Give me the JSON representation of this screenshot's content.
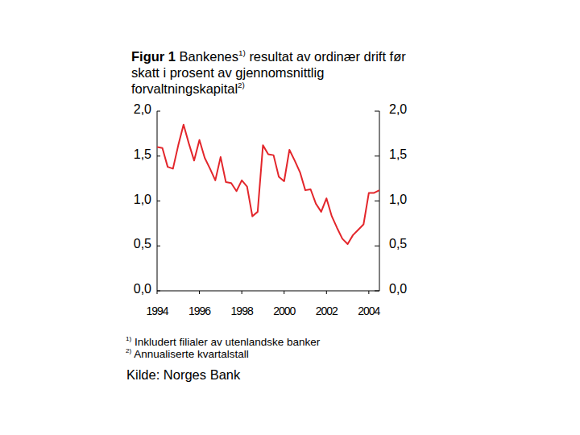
{
  "chart_data": {
    "type": "line",
    "title": "Figur 1",
    "subtitle": [
      {
        "text": "Bankenes",
        "note": "1)"
      },
      {
        "text": "resultat av ordinær drift før skatt i prosent av gjennomsnittlig forvaltningskapital",
        "note": "2)"
      }
    ],
    "x": [
      1994,
      1994.25,
      1994.5,
      1994.75,
      1995,
      1995.25,
      1995.5,
      1995.75,
      1996,
      1996.25,
      1996.5,
      1996.75,
      1997,
      1997.25,
      1997.5,
      1997.75,
      1998,
      1998.25,
      1998.5,
      1998.75,
      1999,
      1999.25,
      1999.5,
      1999.75,
      2000,
      2000.25,
      2000.5,
      2000.75,
      2001,
      2001.25,
      2001.5,
      2001.75,
      2002,
      2002.25,
      2002.5,
      2002.75,
      2003,
      2003.25,
      2003.5,
      2003.75,
      2004,
      2004.25,
      2004.5
    ],
    "values": [
      1.6,
      1.59,
      1.38,
      1.36,
      1.62,
      1.85,
      1.64,
      1.45,
      1.68,
      1.48,
      1.36,
      1.23,
      1.49,
      1.21,
      1.2,
      1.11,
      1.23,
      1.16,
      0.83,
      0.88,
      1.62,
      1.52,
      1.51,
      1.27,
      1.22,
      1.57,
      1.45,
      1.32,
      1.12,
      1.13,
      0.97,
      0.88,
      1.03,
      0.83,
      0.7,
      0.58,
      0.52,
      0.62,
      0.68,
      0.74,
      1.09,
      1.09,
      1.12
    ],
    "color": "#e3262b",
    "xlim": [
      1994,
      2004.5
    ],
    "xticks": [
      1994,
      1996,
      1998,
      2000,
      2002,
      2004
    ],
    "ylim": [
      0,
      2
    ],
    "yticks": [
      {
        "value": 0,
        "label": "0,0"
      },
      {
        "value": 0.5,
        "label": "0,5"
      },
      {
        "value": 1,
        "label": "1,0"
      },
      {
        "value": 1.5,
        "label": "1,5"
      },
      {
        "value": 2,
        "label": "2,0"
      }
    ],
    "grid": false,
    "notes": [
      {
        "marker": "1)",
        "text": "Inkludert filialer av utenlandske banker"
      },
      {
        "marker": "2)",
        "text": "Annualiserte kvartalstall"
      }
    ],
    "source": "Kilde: Norges Bank"
  }
}
